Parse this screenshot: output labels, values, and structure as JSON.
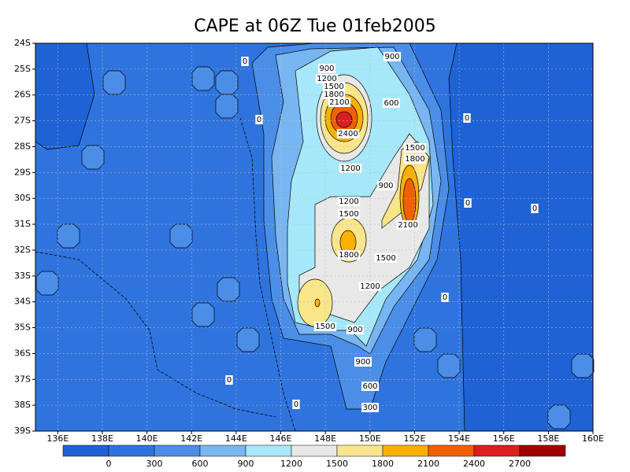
{
  "chart_data": {
    "type": "contour",
    "title": "CAPE at 06Z Tue 01feb2005",
    "xlim": [
      135,
      160
    ],
    "ylim": [
      -39,
      -24
    ],
    "xticks": [
      {
        "value": 136,
        "label": "136E"
      },
      {
        "value": 138,
        "label": "138E"
      },
      {
        "value": 140,
        "label": "140E"
      },
      {
        "value": 142,
        "label": "142E"
      },
      {
        "value": 144,
        "label": "144E"
      },
      {
        "value": 146,
        "label": "146E"
      },
      {
        "value": 148,
        "label": "148E"
      },
      {
        "value": 150,
        "label": "150E"
      },
      {
        "value": 152,
        "label": "152E"
      },
      {
        "value": 154,
        "label": "154E"
      },
      {
        "value": 156,
        "label": "156E"
      },
      {
        "value": 158,
        "label": "158E"
      },
      {
        "value": 160,
        "label": "160E"
      }
    ],
    "yticks": [
      {
        "value": -24,
        "label": "24S"
      },
      {
        "value": -25,
        "label": "25S"
      },
      {
        "value": -26,
        "label": "26S"
      },
      {
        "value": -27,
        "label": "27S"
      },
      {
        "value": -28,
        "label": "28S"
      },
      {
        "value": -29,
        "label": "29S"
      },
      {
        "value": -30,
        "label": "30S"
      },
      {
        "value": -31,
        "label": "31S"
      },
      {
        "value": -32,
        "label": "32S"
      },
      {
        "value": -33,
        "label": "33S"
      },
      {
        "value": -34,
        "label": "34S"
      },
      {
        "value": -35,
        "label": "35S"
      },
      {
        "value": -36,
        "label": "36S"
      },
      {
        "value": -37,
        "label": "37S"
      },
      {
        "value": -38,
        "label": "38S"
      },
      {
        "value": -39,
        "label": "39S"
      }
    ],
    "grid": true,
    "levels": [
      0,
      300,
      600,
      900,
      1200,
      1500,
      1800,
      2100,
      2400,
      2700
    ],
    "colors": [
      "#1f62d6",
      "#2f74de",
      "#4a8ee8",
      "#78b6f2",
      "#a6e8fa",
      "#e8e8e8",
      "#fae68a",
      "#fab000",
      "#f06000",
      "#dc1e1e",
      "#a00000"
    ],
    "contour_labels": [
      0,
      900,
      900,
      1200,
      1500,
      1800,
      600,
      2100,
      0,
      0,
      2400,
      1500,
      1800,
      1200,
      900,
      1200,
      0,
      0,
      1500,
      2100,
      1800,
      1500,
      1200,
      0,
      1500,
      900,
      900,
      0,
      600,
      0,
      300
    ]
  }
}
